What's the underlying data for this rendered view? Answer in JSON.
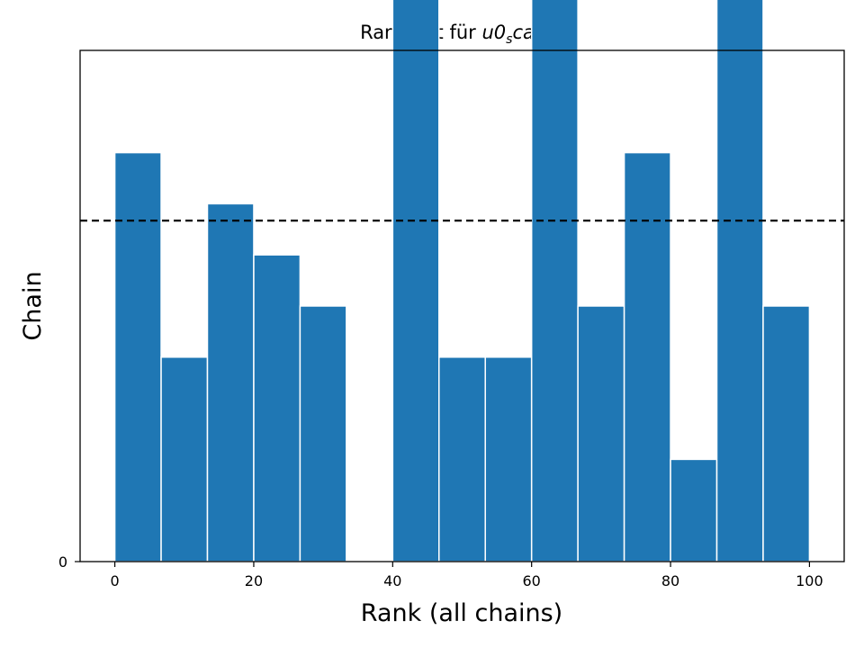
{
  "chart_data": {
    "type": "bar",
    "title_prefix": "Rankplot für ",
    "title_math_main": "u0",
    "title_math_sub": "s",
    "title_math_rest": "caled",
    "xlabel": "Rank (all chains)",
    "ylabel": "Chain",
    "xlim": [
      -5,
      105
    ],
    "ylim": [
      0,
      10
    ],
    "xticks": [
      0,
      20,
      40,
      60,
      80,
      100
    ],
    "xtick_labels": [
      "0",
      "20",
      "40",
      "60",
      "80",
      "100"
    ],
    "yticks": [
      0
    ],
    "ytick_labels": [
      "0"
    ],
    "bin_edges": [
      0,
      6.667,
      13.333,
      20,
      26.667,
      33.333,
      40,
      46.667,
      53.333,
      60,
      66.667,
      73.333,
      80,
      86.667,
      93.333,
      100
    ],
    "counts": [
      8,
      4,
      7,
      6,
      5,
      0,
      19,
      4,
      4,
      11,
      5,
      8,
      2,
      12,
      5
    ],
    "reference_line": 6.67,
    "bar_color": "#1f77b4",
    "reference_line_color": "#000000",
    "grid": false
  }
}
